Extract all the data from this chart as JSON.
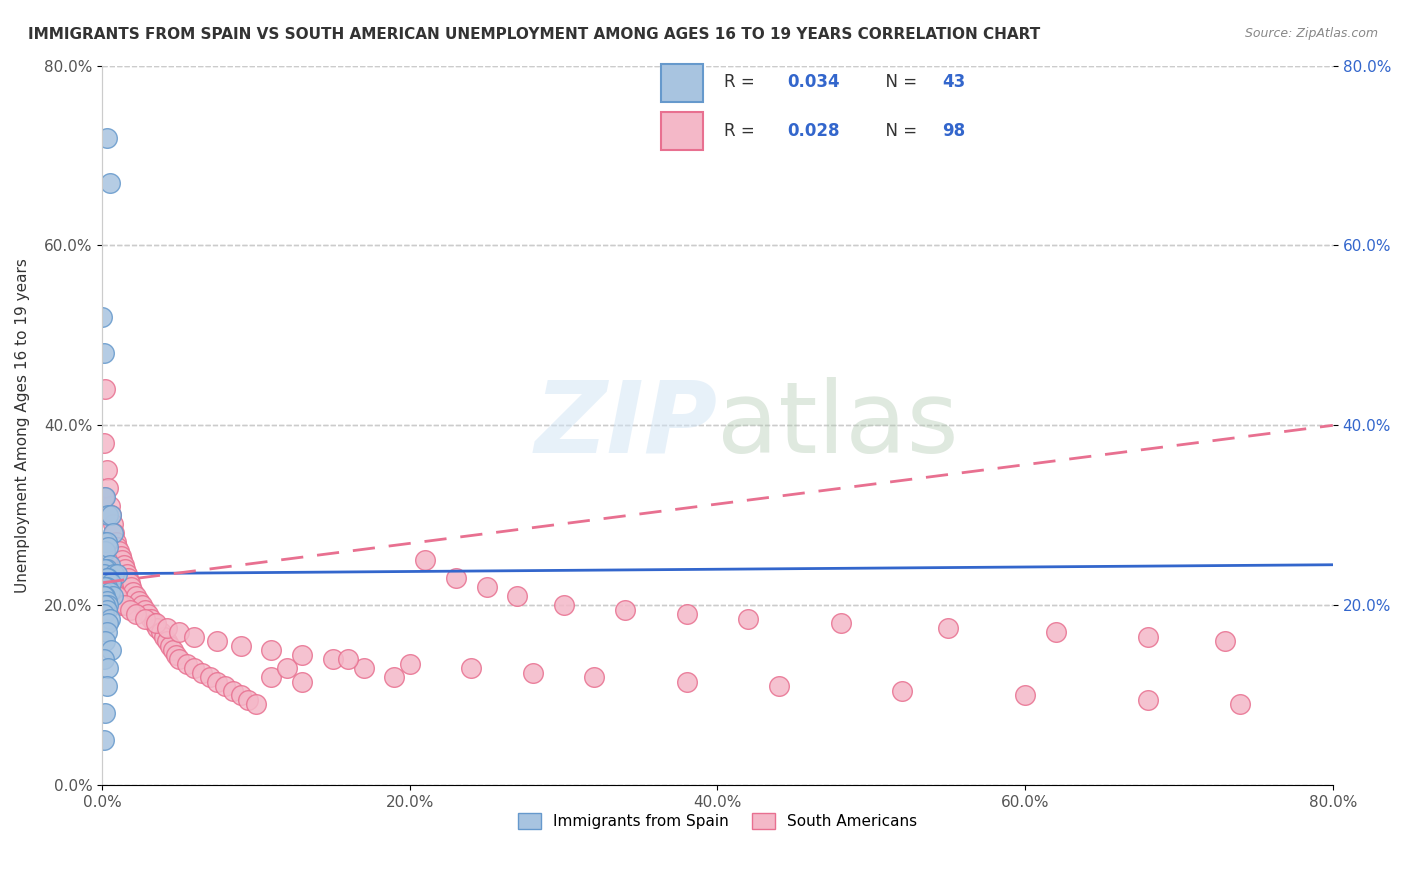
{
  "title": "IMMIGRANTS FROM SPAIN VS SOUTH AMERICAN UNEMPLOYMENT AMONG AGES 16 TO 19 YEARS CORRELATION CHART",
  "source": "Source: ZipAtlas.com",
  "xlabel": "",
  "ylabel": "Unemployment Among Ages 16 to 19 years",
  "xlim": [
    0,
    0.8
  ],
  "ylim": [
    0,
    0.8
  ],
  "xticks": [
    0.0,
    0.2,
    0.4,
    0.6,
    0.8
  ],
  "yticks": [
    0.0,
    0.2,
    0.4,
    0.6,
    0.8
  ],
  "xticklabels": [
    "0.0%",
    "20.0%",
    "40.0%",
    "60.0%",
    "80.0%"
  ],
  "yticklabels": [
    "0.0%",
    "20.0%",
    "40.0%",
    "60.0%",
    "80.0%"
  ],
  "right_yticklabels": [
    "20.0%",
    "40.0%",
    "60.0%",
    "80.0%"
  ],
  "right_yticks": [
    0.2,
    0.4,
    0.6,
    0.8
  ],
  "spain_color": "#a8c4e0",
  "spain_edge_color": "#6699cc",
  "sa_color": "#f4b8c8",
  "sa_edge_color": "#e87090",
  "spain_R": "0.034",
  "spain_N": "43",
  "sa_R": "0.028",
  "sa_N": "98",
  "spain_line_color": "#3366cc",
  "sa_line_color": "#e87090",
  "watermark": "ZIPatlas",
  "grid_color": "#cccccc",
  "spain_scatter_x": [
    0.003,
    0.005,
    0.0,
    0.001,
    0.002,
    0.004,
    0.006,
    0.007,
    0.001,
    0.003,
    0.002,
    0.004,
    0.005,
    0.003,
    0.002,
    0.001,
    0.008,
    0.01,
    0.004,
    0.003,
    0.006,
    0.003,
    0.002,
    0.001,
    0.005,
    0.007,
    0.002,
    0.001,
    0.003,
    0.004,
    0.002,
    0.003,
    0.001,
    0.005,
    0.004,
    0.003,
    0.002,
    0.006,
    0.001,
    0.004,
    0.003,
    0.002,
    0.001
  ],
  "spain_scatter_y": [
    0.72,
    0.67,
    0.52,
    0.48,
    0.32,
    0.3,
    0.3,
    0.28,
    0.27,
    0.27,
    0.26,
    0.265,
    0.245,
    0.24,
    0.24,
    0.235,
    0.235,
    0.235,
    0.23,
    0.23,
    0.225,
    0.22,
    0.22,
    0.215,
    0.215,
    0.21,
    0.21,
    0.21,
    0.205,
    0.2,
    0.2,
    0.195,
    0.19,
    0.185,
    0.18,
    0.17,
    0.16,
    0.15,
    0.14,
    0.13,
    0.11,
    0.08,
    0.05
  ],
  "sa_scatter_x": [
    0.002,
    0.001,
    0.003,
    0.004,
    0.005,
    0.006,
    0.007,
    0.008,
    0.009,
    0.01,
    0.011,
    0.012,
    0.013,
    0.014,
    0.015,
    0.016,
    0.017,
    0.018,
    0.019,
    0.02,
    0.022,
    0.024,
    0.026,
    0.028,
    0.03,
    0.032,
    0.034,
    0.036,
    0.038,
    0.04,
    0.042,
    0.044,
    0.046,
    0.048,
    0.05,
    0.055,
    0.06,
    0.065,
    0.07,
    0.075,
    0.08,
    0.085,
    0.09,
    0.095,
    0.1,
    0.11,
    0.12,
    0.13,
    0.15,
    0.17,
    0.19,
    0.21,
    0.23,
    0.25,
    0.27,
    0.3,
    0.34,
    0.38,
    0.42,
    0.48,
    0.55,
    0.62,
    0.68,
    0.73,
    0.001,
    0.002,
    0.003,
    0.004,
    0.005,
    0.006,
    0.007,
    0.008,
    0.009,
    0.01,
    0.012,
    0.015,
    0.018,
    0.022,
    0.028,
    0.035,
    0.042,
    0.05,
    0.06,
    0.075,
    0.09,
    0.11,
    0.13,
    0.16,
    0.2,
    0.24,
    0.28,
    0.32,
    0.38,
    0.44,
    0.52,
    0.6,
    0.68,
    0.74
  ],
  "sa_scatter_y": [
    0.44,
    0.38,
    0.35,
    0.33,
    0.31,
    0.3,
    0.29,
    0.28,
    0.27,
    0.265,
    0.26,
    0.255,
    0.25,
    0.245,
    0.24,
    0.235,
    0.23,
    0.225,
    0.22,
    0.215,
    0.21,
    0.205,
    0.2,
    0.195,
    0.19,
    0.185,
    0.18,
    0.175,
    0.17,
    0.165,
    0.16,
    0.155,
    0.15,
    0.145,
    0.14,
    0.135,
    0.13,
    0.125,
    0.12,
    0.115,
    0.11,
    0.105,
    0.1,
    0.095,
    0.09,
    0.12,
    0.13,
    0.115,
    0.14,
    0.13,
    0.12,
    0.25,
    0.23,
    0.22,
    0.21,
    0.2,
    0.195,
    0.19,
    0.185,
    0.18,
    0.175,
    0.17,
    0.165,
    0.16,
    0.32,
    0.26,
    0.25,
    0.24,
    0.235,
    0.23,
    0.22,
    0.215,
    0.21,
    0.21,
    0.2,
    0.2,
    0.195,
    0.19,
    0.185,
    0.18,
    0.175,
    0.17,
    0.165,
    0.16,
    0.155,
    0.15,
    0.145,
    0.14,
    0.135,
    0.13,
    0.125,
    0.12,
    0.115,
    0.11,
    0.105,
    0.1,
    0.095,
    0.09
  ]
}
